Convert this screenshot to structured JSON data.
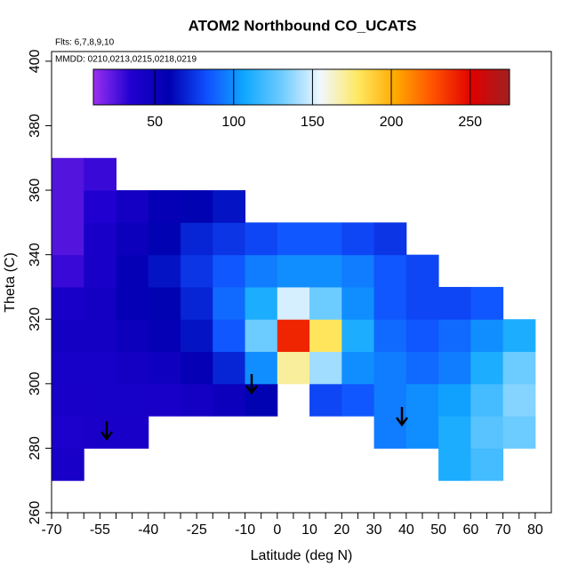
{
  "chart_data": {
    "type": "heatmap",
    "title": "ATOM2 Northbound CO_UCATS",
    "flights": "Flts: 6,7,8,9,10",
    "dates": "MMDD: 0210,0213,0215,0218,0219",
    "x_label": "Latitude (deg N)",
    "y_label": "Theta (C)",
    "x_bins": [
      -70,
      -60,
      -50,
      -40,
      -30,
      -20,
      -10,
      0,
      10,
      20,
      30,
      40,
      50,
      60,
      70,
      80
    ],
    "y_bins": [
      270,
      280,
      290,
      300,
      310,
      320,
      330,
      340,
      350,
      360,
      370
    ],
    "values": [
      [
        40,
        null,
        null,
        null,
        null,
        null,
        null,
        null,
        null,
        null,
        null,
        null,
        110,
        120,
        null
      ],
      [
        38,
        40,
        40,
        null,
        null,
        null,
        null,
        null,
        null,
        null,
        95,
        100,
        110,
        125,
        130
      ],
      [
        40,
        42,
        42,
        40,
        45,
        50,
        60,
        null,
        80,
        85,
        95,
        100,
        105,
        120,
        135
      ],
      [
        42,
        42,
        45,
        48,
        55,
        70,
        100,
        170,
        140,
        100,
        95,
        90,
        95,
        110,
        130
      ],
      [
        45,
        45,
        50,
        55,
        65,
        85,
        130,
        240,
        180,
        110,
        90,
        85,
        90,
        100,
        110
      ],
      [
        40,
        45,
        55,
        60,
        70,
        90,
        110,
        150,
        130,
        100,
        85,
        80,
        80,
        85,
        null
      ],
      [
        30,
        40,
        55,
        65,
        75,
        85,
        95,
        100,
        100,
        95,
        85,
        80,
        null,
        null,
        null
      ],
      [
        25,
        40,
        50,
        60,
        70,
        75,
        80,
        85,
        85,
        80,
        75,
        null,
        null,
        null,
        null
      ],
      [
        25,
        35,
        45,
        55,
        60,
        65,
        null,
        null,
        null,
        null,
        null,
        null,
        null,
        null,
        null
      ],
      [
        25,
        30,
        null,
        null,
        null,
        null,
        null,
        null,
        null,
        null,
        null,
        null,
        null,
        null,
        null
      ]
    ],
    "xlim": [
      -70,
      85
    ],
    "ylim": [
      260,
      403
    ],
    "xticks": [
      -70,
      -55,
      -40,
      -25,
      -10,
      0,
      10,
      20,
      30,
      40,
      50,
      60,
      70,
      80
    ],
    "xminorticks": [
      -65,
      -60,
      -50,
      -45,
      -35,
      -30,
      -20,
      -15,
      -5,
      5,
      15,
      25,
      35,
      45,
      55,
      65,
      75
    ],
    "yticks": [
      260,
      280,
      300,
      320,
      340,
      360,
      380,
      400
    ],
    "colorbar": {
      "lim": [
        11,
        275
      ],
      "ticks": [
        50,
        100,
        150,
        200,
        250
      ],
      "colors": [
        "#9a30f0",
        "#2000d0",
        "#0000b0",
        "#1050ff",
        "#10a8ff",
        "#70ccff",
        "#f0f8ff",
        "#ffe860",
        "#ffa800",
        "#ff5000",
        "#e00000",
        "#a02020"
      ]
    }
  }
}
